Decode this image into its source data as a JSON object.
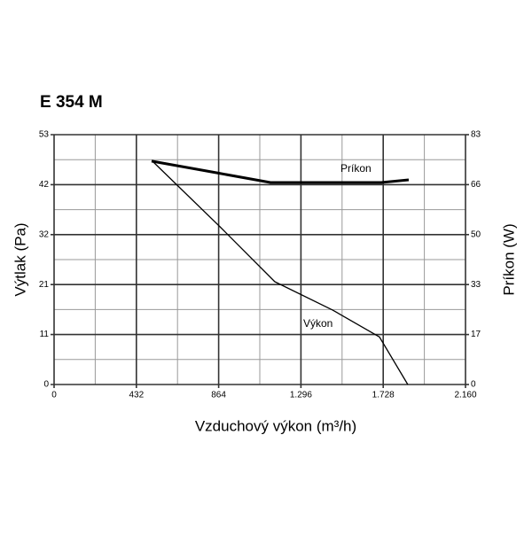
{
  "chart_data": {
    "type": "line",
    "title": "E 354 M",
    "x_label": "Vzduchový výkon (m³/h)",
    "y_label": "Výtlak (Pa)",
    "y2_label": "Príkon (W)",
    "xlim": [
      0,
      2160
    ],
    "xticks": [
      0,
      432,
      864,
      {
        "value": 1296,
        "label": "1.296"
      },
      {
        "value": 1728,
        "label": "1.728"
      },
      {
        "value": 2160,
        "label": "2.160"
      }
    ],
    "ylim": [
      0,
      53
    ],
    "yticks": [
      0,
      {
        "value": 10.6,
        "label": "11"
      },
      {
        "value": 21.2,
        "label": "21"
      },
      {
        "value": 31.8,
        "label": "32"
      },
      {
        "value": 42.4,
        "label": "42"
      },
      53
    ],
    "y2lim": [
      0,
      83
    ],
    "y2ticks": [
      0,
      {
        "value": 16.6,
        "label": "17"
      },
      {
        "value": 33.2,
        "label": "33"
      },
      {
        "value": 49.8,
        "label": "50"
      },
      {
        "value": 66.4,
        "label": "66"
      },
      83
    ],
    "grid": true,
    "minor_grid": true,
    "series": [
      {
        "name": "Príkon",
        "color": "#000000",
        "axis": "y2",
        "line_width": 3,
        "x": [
          512,
          856,
          1136,
          1345,
          1718,
          1862
        ],
        "values": [
          74.2,
          70.3,
          67.1,
          67.1,
          67.1,
          68.0
        ]
      },
      {
        "name": "Výkon",
        "color": "#000000",
        "line_width": 1.3,
        "x": [
          521,
          870,
          1159,
          1462,
          1708,
          1857
        ],
        "values": [
          47.2,
          33.5,
          21.8,
          15.8,
          10.1,
          0
        ]
      }
    ]
  }
}
